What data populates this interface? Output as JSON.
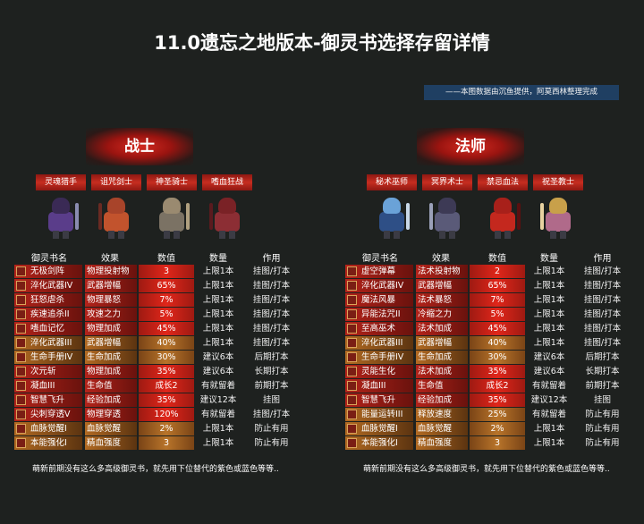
{
  "title": "11.0遗忘之地版本-御灵书选择存留详情",
  "credit": "——本图数据由沉鱼提供，阿莫西林整理完成",
  "headers": [
    "御灵书名",
    "效果",
    "数值",
    "数量",
    "作用"
  ],
  "footnote": "萌新前期没有这么多高级御灵书，就先用下位替代的紫色或蓝色等等..",
  "warrior": {
    "title": "战士",
    "classes": [
      "灵魂猎手",
      "诅咒剑士",
      "神圣骑士",
      "嗜血狂战"
    ],
    "rows": [
      {
        "tier": "red",
        "name": "无极剑阵",
        "effect": "物理投射物",
        "value": "3",
        "qty": "上限1本",
        "use": "挂图/打本"
      },
      {
        "tier": "red",
        "name": "淬化武器IV",
        "effect": "武器增幅",
        "value": "65%",
        "qty": "上限1本",
        "use": "挂图/打本"
      },
      {
        "tier": "red",
        "name": "狂怒虐杀",
        "effect": "物理暴怒",
        "value": "7%",
        "qty": "上限1本",
        "use": "挂图/打本"
      },
      {
        "tier": "red",
        "name": "疾速追杀II",
        "effect": "攻速之力",
        "value": "5%",
        "qty": "上限1本",
        "use": "挂图/打本"
      },
      {
        "tier": "red",
        "name": "嗜血记忆",
        "effect": "物理加成",
        "value": "45%",
        "qty": "上限1本",
        "use": "挂图/打本"
      },
      {
        "tier": "orange",
        "name": "淬化武器III",
        "effect": "武器增幅",
        "value": "40%",
        "qty": "上限1本",
        "use": "挂图/打本"
      },
      {
        "tier": "orange",
        "name": "生命手册IV",
        "effect": "生命加成",
        "value": "30%",
        "qty": "建议6本",
        "use": "后期打本"
      },
      {
        "tier": "red",
        "name": "次元斩",
        "effect": "物理加成",
        "value": "35%",
        "qty": "建议6本",
        "use": "长期打本"
      },
      {
        "tier": "red",
        "name": "凝血III",
        "effect": "生命值",
        "value": "成长2",
        "qty": "有就留着",
        "use": "前期打本"
      },
      {
        "tier": "red",
        "name": "智慧飞升",
        "effect": "经验加成",
        "value": "35%",
        "qty": "建议12本",
        "use": "挂图"
      },
      {
        "tier": "red",
        "name": "尖刺穿透V",
        "effect": "物理穿透",
        "value": "120%",
        "qty": "有就留着",
        "use": "挂图/打本"
      },
      {
        "tier": "orange",
        "name": "血脉觉醒I",
        "effect": "血脉觉醒",
        "value": "2%",
        "qty": "上限1本",
        "use": "防止有用"
      },
      {
        "tier": "orange",
        "name": "本能强化I",
        "effect": "精血强度",
        "value": "3",
        "qty": "上限1本",
        "use": "防止有用"
      }
    ]
  },
  "mage": {
    "title": "法师",
    "classes": [
      "秘术巫师",
      "冥界术士",
      "禁忌血法",
      "祝圣教士"
    ],
    "rows": [
      {
        "tier": "red",
        "name": "虚空弹幕",
        "effect": "法术投射物",
        "value": "2",
        "qty": "上限1本",
        "use": "挂图/打本"
      },
      {
        "tier": "red",
        "name": "淬化武器IV",
        "effect": "武器增幅",
        "value": "65%",
        "qty": "上限1本",
        "use": "挂图/打本"
      },
      {
        "tier": "red",
        "name": "魔法风暴",
        "effect": "法术暴怒",
        "value": "7%",
        "qty": "上限1本",
        "use": "挂图/打本"
      },
      {
        "tier": "red",
        "name": "异能法咒II",
        "effect": "冷缩之力",
        "value": "5%",
        "qty": "上限1本",
        "use": "挂图/打本"
      },
      {
        "tier": "red",
        "name": "至高巫术",
        "effect": "法术加成",
        "value": "45%",
        "qty": "上限1本",
        "use": "挂图/打本"
      },
      {
        "tier": "orange",
        "name": "淬化武器III",
        "effect": "武器增幅",
        "value": "40%",
        "qty": "上限1本",
        "use": "挂图/打本"
      },
      {
        "tier": "orange",
        "name": "生命手册IV",
        "effect": "生命加成",
        "value": "30%",
        "qty": "建议6本",
        "use": "后期打本"
      },
      {
        "tier": "red",
        "name": "灵能生化",
        "effect": "法术加成",
        "value": "35%",
        "qty": "建议6本",
        "use": "长期打本"
      },
      {
        "tier": "red",
        "name": "凝血III",
        "effect": "生命值",
        "value": "成长2",
        "qty": "有就留着",
        "use": "前期打本"
      },
      {
        "tier": "red",
        "name": "智慧飞升",
        "effect": "经验加成",
        "value": "35%",
        "qty": "建议12本",
        "use": "挂图"
      },
      {
        "tier": "orange",
        "name": "能量运转III",
        "effect": "释放速度",
        "value": "25%",
        "qty": "有就留着",
        "use": "防止有用"
      },
      {
        "tier": "orange",
        "name": "血脉觉醒I",
        "effect": "血脉觉醒",
        "value": "2%",
        "qty": "上限1本",
        "use": "防止有用"
      },
      {
        "tier": "orange",
        "name": "本能强化I",
        "effect": "精血强度",
        "value": "3",
        "qty": "上限1本",
        "use": "防止有用"
      }
    ]
  }
}
